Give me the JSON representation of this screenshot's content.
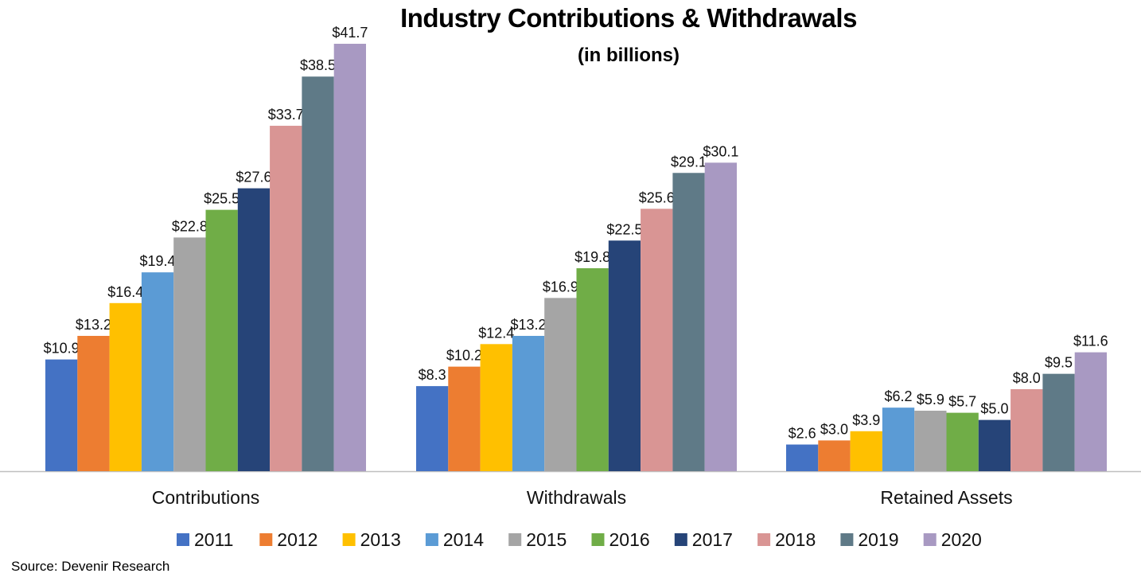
{
  "chart_data": {
    "type": "bar",
    "title": "Industry Contributions & Withdrawals",
    "subtitle": "(in billions)",
    "categories": [
      "Contributions",
      "Withdrawals",
      "Retained Assets"
    ],
    "series": [
      {
        "name": "2011",
        "color": "#4472C4",
        "values": [
          10.9,
          8.3,
          2.6
        ]
      },
      {
        "name": "2012",
        "color": "#ED7D31",
        "values": [
          13.2,
          10.2,
          3.0
        ]
      },
      {
        "name": "2013",
        "color": "#FFC000",
        "values": [
          16.4,
          12.4,
          3.9
        ]
      },
      {
        "name": "2014",
        "color": "#5B9BD5",
        "values": [
          19.4,
          13.2,
          6.2
        ]
      },
      {
        "name": "2015",
        "color": "#A5A5A5",
        "values": [
          22.8,
          16.9,
          5.9
        ]
      },
      {
        "name": "2016",
        "color": "#70AD47",
        "values": [
          25.5,
          19.8,
          5.7
        ]
      },
      {
        "name": "2017",
        "color": "#264478",
        "values": [
          27.6,
          22.5,
          5.0
        ]
      },
      {
        "name": "2018",
        "color": "#D99594",
        "values": [
          33.7,
          25.6,
          8.0
        ]
      },
      {
        "name": "2019",
        "color": "#5F7A87",
        "values": [
          38.5,
          29.1,
          9.5
        ]
      },
      {
        "name": "2020",
        "color": "#A899C2",
        "values": [
          41.7,
          30.1,
          11.6
        ]
      }
    ],
    "data_labels": [
      [
        "$10.9",
        "$8.3",
        "$2.6"
      ],
      [
        "$13.2",
        "$10.2",
        "$3.0"
      ],
      [
        "$16.4",
        "$12.4",
        "$3.9"
      ],
      [
        "$19.4",
        "$13.2",
        "$6.2"
      ],
      [
        "$22.8",
        "$16.9",
        "$5.9"
      ],
      [
        "$25.5",
        "$19.8",
        "$5.7"
      ],
      [
        "$27.6",
        "$22.5",
        "$5.0"
      ],
      [
        "$33.7",
        "$25.6",
        "$8.0"
      ],
      [
        "$38.5",
        "$29.1",
        "$9.5"
      ],
      [
        "$41.7",
        "$30.1",
        "$11.6"
      ]
    ],
    "ylim": [
      0,
      41.7
    ],
    "grid": false,
    "legend_position": "bottom"
  },
  "source": "Source: Devenir Research"
}
